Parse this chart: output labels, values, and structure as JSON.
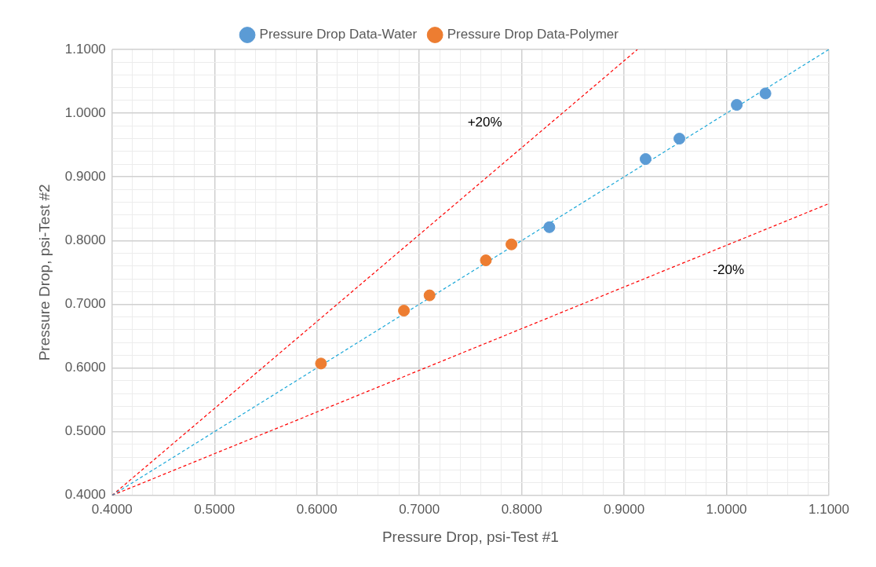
{
  "chart_data": {
    "type": "scatter",
    "xlabel": "Pressure Drop, psi-Test #1",
    "ylabel": "Pressure Drop, psi-Test #2",
    "series": [
      {
        "name": "Pressure Drop Data-Water",
        "color": "#5b9bd5",
        "x": [
          0.827,
          0.921,
          0.954,
          1.01,
          1.038
        ],
        "values": [
          0.821,
          0.928,
          0.96,
          1.013,
          1.031
        ]
      },
      {
        "name": "Pressure Drop Data-Polymer",
        "color": "#ed7d31",
        "x": [
          0.604,
          0.685,
          0.71,
          0.765,
          0.79
        ],
        "values": [
          0.607,
          0.69,
          0.714,
          0.769,
          0.794
        ]
      },
      {
        "type": "line",
        "color": "#1aa7d8",
        "line_style": "dashed",
        "marker": "none",
        "x": [
          0.4,
          1.1
        ],
        "values": [
          0.4,
          1.1
        ]
      },
      {
        "type": "line",
        "color": "#ff0000",
        "line_style": "dashed",
        "marker": "none",
        "x": [
          0.4,
          0.913
        ],
        "values": [
          0.4,
          1.1
        ]
      },
      {
        "type": "line",
        "color": "#ff0000",
        "line_style": "dashed",
        "marker": "none",
        "x": [
          0.4,
          1.1
        ],
        "values": [
          0.4,
          0.858
        ]
      }
    ],
    "annotations": [
      "+20%",
      "-20%"
    ],
    "xlim": [
      0.4,
      1.1
    ],
    "ylim": [
      0.4,
      1.1
    ],
    "xticks": [
      {
        "value": 0.4,
        "label": "0.4000"
      },
      {
        "value": 0.42,
        "label": null
      },
      {
        "value": 0.44,
        "label": null
      },
      {
        "value": 0.46,
        "label": null
      },
      {
        "value": 0.48,
        "label": null
      },
      {
        "value": 0.5,
        "label": "0.5000"
      },
      {
        "value": 0.52,
        "label": null
      },
      {
        "value": 0.54,
        "label": null
      },
      {
        "value": 0.56,
        "label": null
      },
      {
        "value": 0.58,
        "label": null
      },
      {
        "value": 0.6,
        "label": "0.6000"
      },
      {
        "value": 0.62,
        "label": null
      },
      {
        "value": 0.64,
        "label": null
      },
      {
        "value": 0.66,
        "label": null
      },
      {
        "value": 0.68,
        "label": null
      },
      {
        "value": 0.7,
        "label": "0.7000"
      },
      {
        "value": 0.72,
        "label": null
      },
      {
        "value": 0.74,
        "label": null
      },
      {
        "value": 0.76,
        "label": null
      },
      {
        "value": 0.78,
        "label": null
      },
      {
        "value": 0.8,
        "label": "0.8000"
      },
      {
        "value": 0.82,
        "label": null
      },
      {
        "value": 0.84,
        "label": null
      },
      {
        "value": 0.86,
        "label": null
      },
      {
        "value": 0.88,
        "label": null
      },
      {
        "value": 0.9,
        "label": "0.9000"
      },
      {
        "value": 0.92,
        "label": null
      },
      {
        "value": 0.94,
        "label": null
      },
      {
        "value": 0.96,
        "label": null
      },
      {
        "value": 0.98,
        "label": null
      },
      {
        "value": 1.0,
        "label": "1.0000"
      },
      {
        "value": 1.02,
        "label": null
      },
      {
        "value": 1.04,
        "label": null
      },
      {
        "value": 1.06,
        "label": null
      },
      {
        "value": 1.08,
        "label": null
      },
      {
        "value": 1.1,
        "label": "1.1000"
      }
    ],
    "yticks": [
      {
        "value": 0.4,
        "label": "0.4000"
      },
      {
        "value": 0.42,
        "label": null
      },
      {
        "value": 0.44,
        "label": null
      },
      {
        "value": 0.46,
        "label": null
      },
      {
        "value": 0.48,
        "label": null
      },
      {
        "value": 0.5,
        "label": "0.5000"
      },
      {
        "value": 0.52,
        "label": null
      },
      {
        "value": 0.54,
        "label": null
      },
      {
        "value": 0.56,
        "label": null
      },
      {
        "value": 0.58,
        "label": null
      },
      {
        "value": 0.6,
        "label": "0.6000"
      },
      {
        "value": 0.62,
        "label": null
      },
      {
        "value": 0.64,
        "label": null
      },
      {
        "value": 0.66,
        "label": null
      },
      {
        "value": 0.68,
        "label": null
      },
      {
        "value": 0.7,
        "label": "0.7000"
      },
      {
        "value": 0.72,
        "label": null
      },
      {
        "value": 0.74,
        "label": null
      },
      {
        "value": 0.76,
        "label": null
      },
      {
        "value": 0.78,
        "label": null
      },
      {
        "value": 0.8,
        "label": "0.8000"
      },
      {
        "value": 0.82,
        "label": null
      },
      {
        "value": 0.84,
        "label": null
      },
      {
        "value": 0.86,
        "label": null
      },
      {
        "value": 0.88,
        "label": null
      },
      {
        "value": 0.9,
        "label": "0.9000"
      },
      {
        "value": 0.92,
        "label": null
      },
      {
        "value": 0.94,
        "label": null
      },
      {
        "value": 0.96,
        "label": null
      },
      {
        "value": 0.98,
        "label": null
      },
      {
        "value": 1.0,
        "label": "1.0000"
      },
      {
        "value": 1.02,
        "label": null
      },
      {
        "value": 1.04,
        "label": null
      },
      {
        "value": 1.06,
        "label": null
      },
      {
        "value": 1.08,
        "label": null
      },
      {
        "value": 1.1,
        "label": "1.1000"
      }
    ],
    "grid": true,
    "legend": "top",
    "marker": "circle"
  }
}
